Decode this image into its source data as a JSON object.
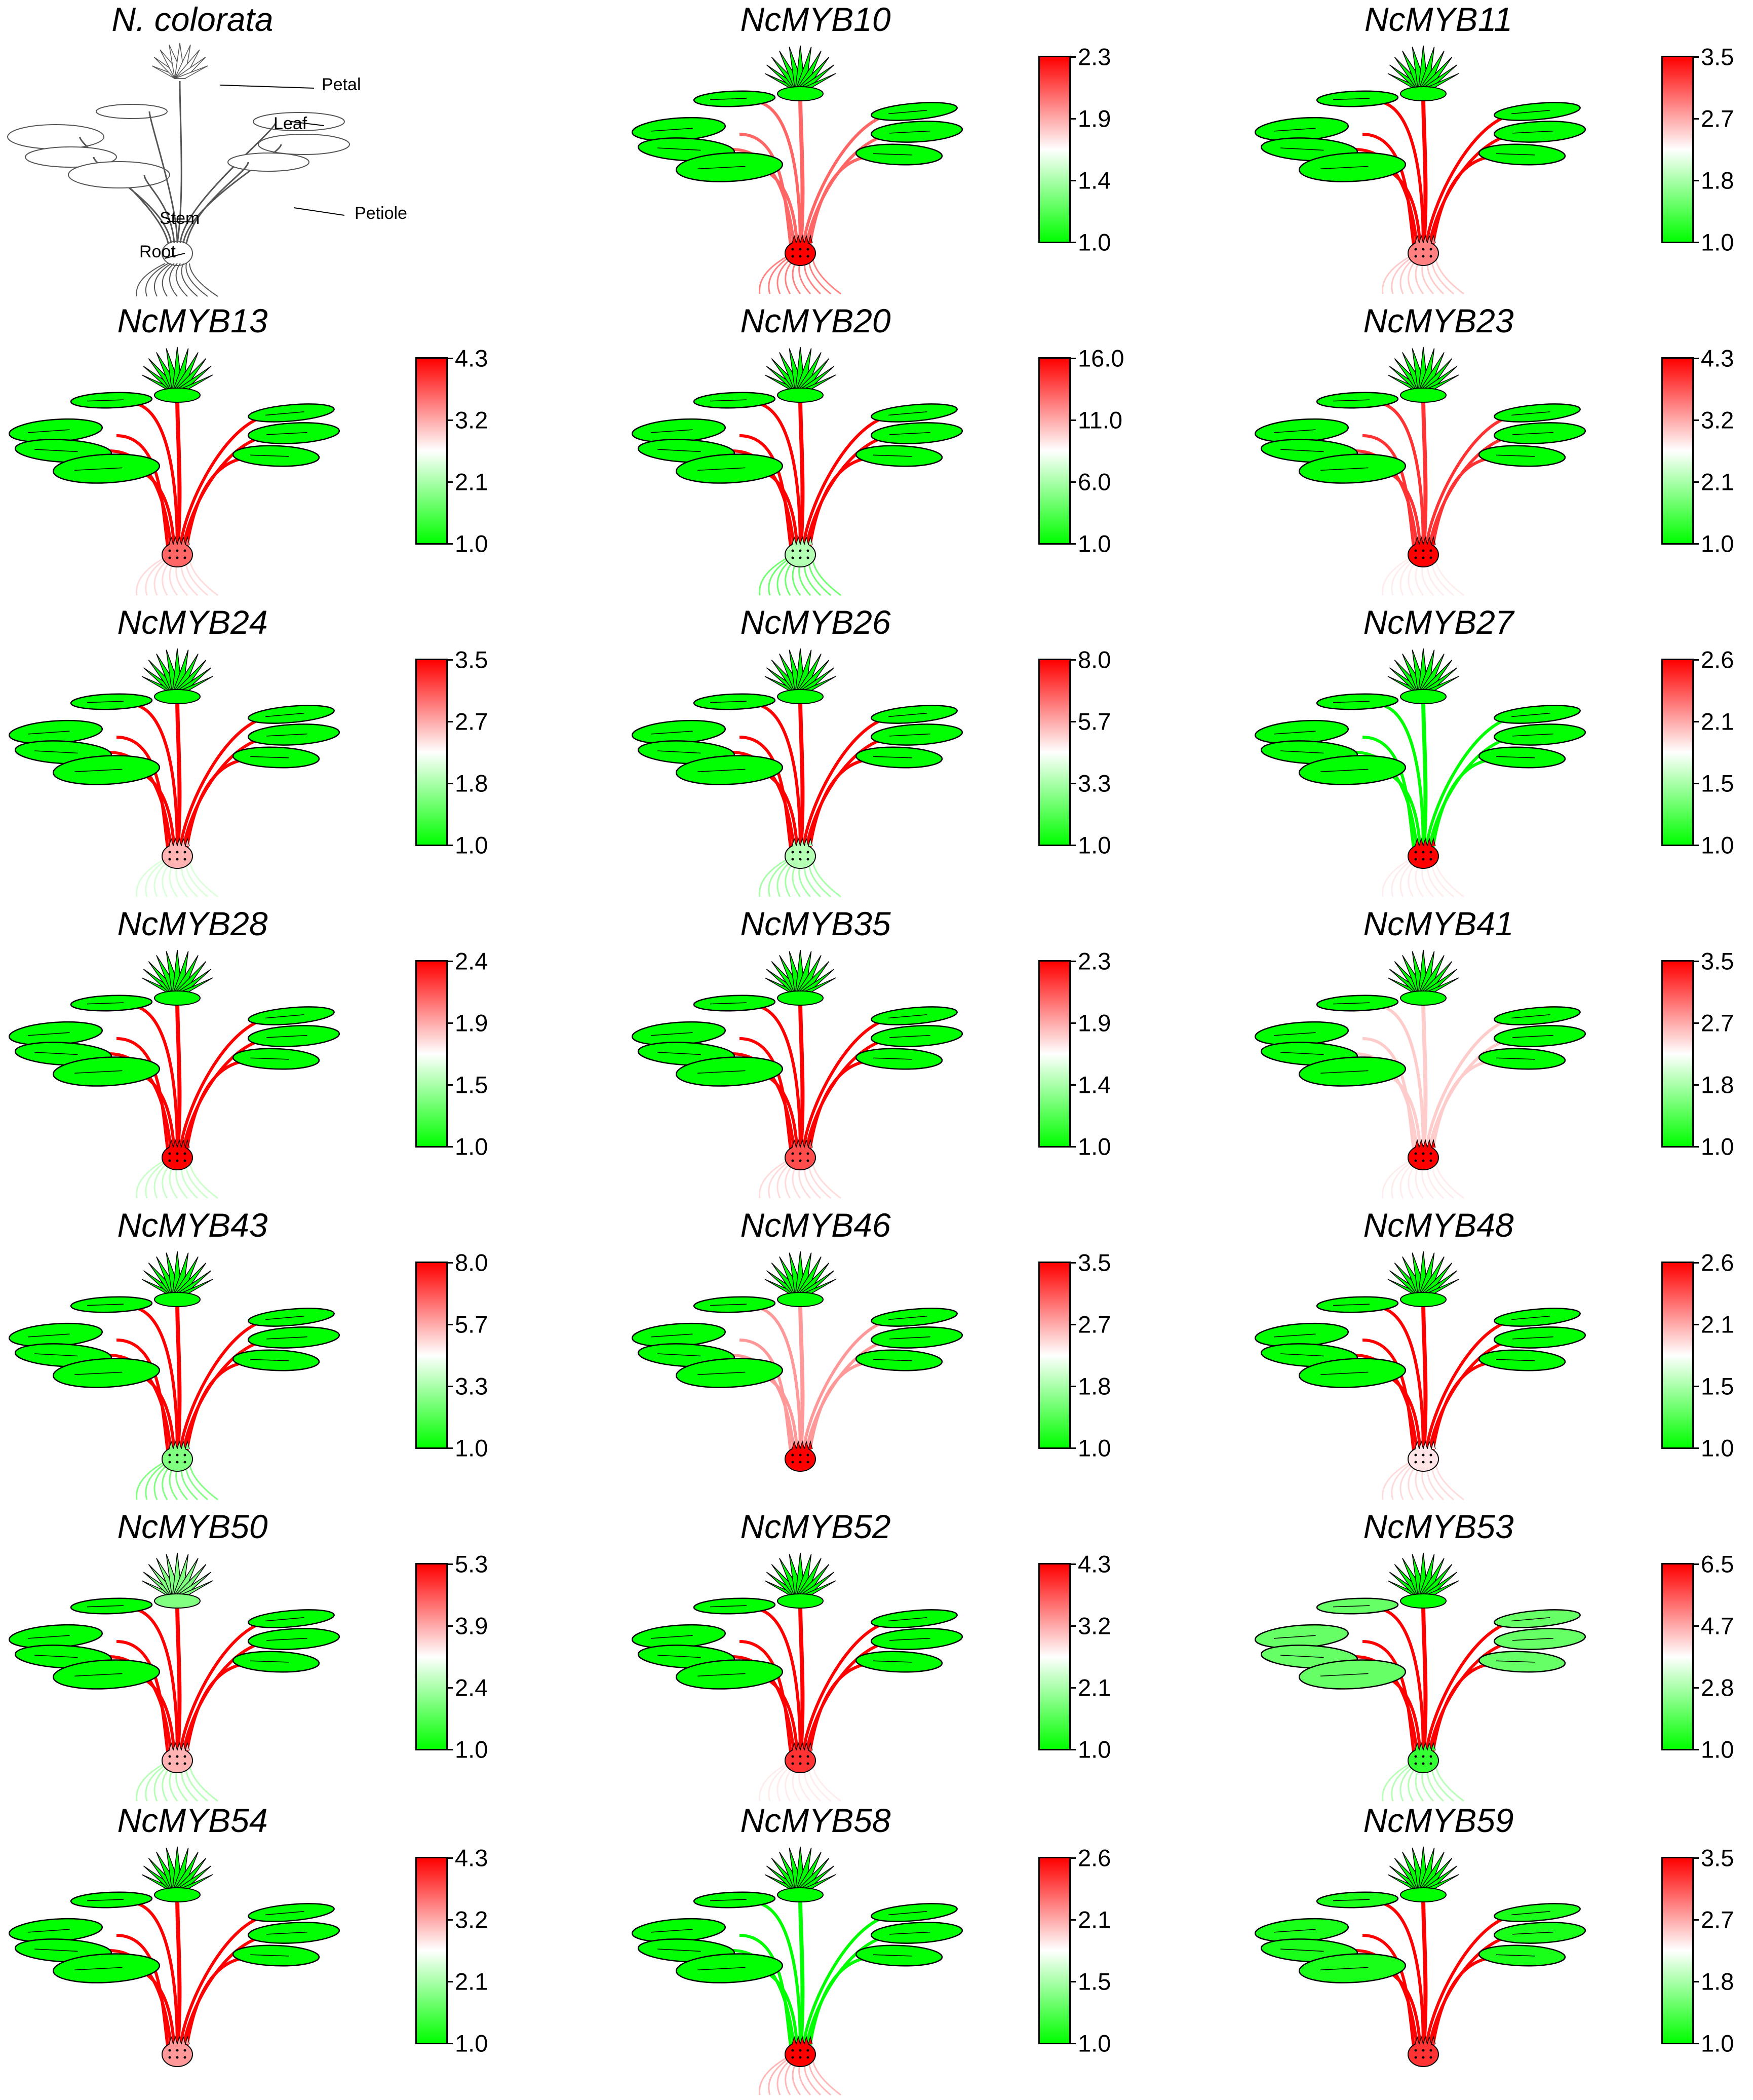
{
  "colors": {
    "low": "#00ff00",
    "mid": "#ffffff",
    "high": "#ff0000"
  },
  "reference": {
    "title": "N. colorata",
    "labels": {
      "petal": "Petal",
      "leaf": "Leaf",
      "stem": "Stem",
      "petiole": "Petiole",
      "root": "Root"
    }
  },
  "panels": [
    {
      "gene": "NcMYB10",
      "ticks": [
        "2.3",
        "1.9",
        "1.4",
        "1.0"
      ],
      "flower": 0.0,
      "leaf": 0.0,
      "petiole": 0.8,
      "stem": 1.0,
      "root": 0.85
    },
    {
      "gene": "NcMYB11",
      "ticks": [
        "3.5",
        "2.7",
        "1.8",
        "1.0"
      ],
      "flower": 0.0,
      "leaf": 0.0,
      "petiole": 1.0,
      "stem": 0.75,
      "root": 0.65
    },
    {
      "gene": "NcMYB13",
      "ticks": [
        "4.3",
        "3.2",
        "2.1",
        "1.0"
      ],
      "flower": 0.0,
      "leaf": 0.0,
      "petiole": 1.0,
      "stem": 0.8,
      "root": 0.6
    },
    {
      "gene": "NcMYB20",
      "ticks": [
        "16.0",
        "11.0",
        "6.0",
        "1.0"
      ],
      "flower": 0.0,
      "leaf": 0.0,
      "petiole": 1.0,
      "stem": 0.35,
      "root": 0.1
    },
    {
      "gene": "NcMYB23",
      "ticks": [
        "4.3",
        "3.2",
        "2.1",
        "1.0"
      ],
      "flower": 0.0,
      "leaf": 0.0,
      "petiole": 0.9,
      "stem": 1.0,
      "root": 0.55
    },
    {
      "gene": "NcMYB24",
      "ticks": [
        "3.5",
        "2.7",
        "1.8",
        "1.0"
      ],
      "flower": 0.0,
      "leaf": 0.0,
      "petiole": 1.0,
      "stem": 0.65,
      "root": 0.4
    },
    {
      "gene": "NcMYB26",
      "ticks": [
        "8.0",
        "5.7",
        "3.3",
        "1.0"
      ],
      "flower": 0.0,
      "leaf": 0.0,
      "petiole": 1.0,
      "stem": 0.35,
      "root": 0.25
    },
    {
      "gene": "NcMYB27",
      "ticks": [
        "2.6",
        "2.1",
        "1.5",
        "1.0"
      ],
      "flower": 0.0,
      "leaf": 0.0,
      "petiole": 0.0,
      "stem": 1.0,
      "root": 0.55
    },
    {
      "gene": "NcMYB28",
      "ticks": [
        "2.4",
        "1.9",
        "1.5",
        "1.0"
      ],
      "flower": 0.0,
      "leaf": 0.0,
      "petiole": 1.0,
      "stem": 1.0,
      "root": 0.35
    },
    {
      "gene": "NcMYB35",
      "ticks": [
        "2.3",
        "1.9",
        "1.4",
        "1.0"
      ],
      "flower": 0.0,
      "leaf": 0.0,
      "petiole": 1.0,
      "stem": 0.85,
      "root": 0.6
    },
    {
      "gene": "NcMYB41",
      "ticks": [
        "3.5",
        "2.7",
        "1.8",
        "1.0"
      ],
      "flower": 0.0,
      "leaf": 0.0,
      "petiole": 0.6,
      "stem": 1.0,
      "root": 0.55
    },
    {
      "gene": "NcMYB43",
      "ticks": [
        "8.0",
        "5.7",
        "3.3",
        "1.0"
      ],
      "flower": 0.0,
      "leaf": 0.0,
      "petiole": 1.0,
      "stem": 0.25,
      "root": 0.15
    },
    {
      "gene": "NcMYB46",
      "ticks": [
        "3.5",
        "2.7",
        "1.8",
        "1.0"
      ],
      "flower": 0.0,
      "leaf": 0.0,
      "petiole": 0.7,
      "stem": 1.0,
      "root": 0.5
    },
    {
      "gene": "NcMYB48",
      "ticks": [
        "2.6",
        "2.1",
        "1.5",
        "1.0"
      ],
      "flower": 0.0,
      "leaf": 0.0,
      "petiole": 1.0,
      "stem": 0.55,
      "root": 0.6
    },
    {
      "gene": "NcMYB50",
      "ticks": [
        "5.3",
        "3.9",
        "2.4",
        "1.0"
      ],
      "flower": 0.25,
      "leaf": 0.0,
      "petiole": 1.0,
      "stem": 0.65,
      "root": 0.3
    },
    {
      "gene": "NcMYB52",
      "ticks": [
        "4.3",
        "3.2",
        "2.1",
        "1.0"
      ],
      "flower": 0.0,
      "leaf": 0.0,
      "petiole": 1.0,
      "stem": 0.9,
      "root": 0.55
    },
    {
      "gene": "NcMYB53",
      "ticks": [
        "6.5",
        "4.7",
        "2.8",
        "1.0"
      ],
      "flower": 0.0,
      "leaf": 0.2,
      "petiole": 1.0,
      "stem": 0.1,
      "root": 0.3
    },
    {
      "gene": "NcMYB54",
      "ticks": [
        "4.3",
        "3.2",
        "2.1",
        "1.0"
      ],
      "flower": 0.0,
      "leaf": 0.0,
      "petiole": 1.0,
      "stem": 0.7,
      "root": 0.5
    },
    {
      "gene": "NcMYB58",
      "ticks": [
        "2.6",
        "2.1",
        "1.5",
        "1.0"
      ],
      "flower": 0.0,
      "leaf": 0.0,
      "petiole": 0.0,
      "stem": 1.0,
      "root": 0.7
    },
    {
      "gene": "NcMYB59",
      "ticks": [
        "3.5",
        "2.7",
        "1.8",
        "1.0"
      ],
      "flower": 0.0,
      "leaf": 0.05,
      "petiole": 1.0,
      "stem": 0.9,
      "root": 0.5
    }
  ]
}
